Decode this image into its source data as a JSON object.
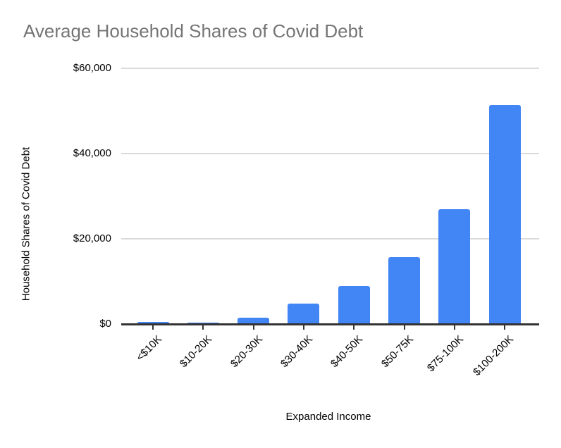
{
  "page": {
    "background": "#ffffff"
  },
  "chart_data": {
    "type": "bar",
    "title": "Average Household Shares of Covid Debt",
    "xlabel": "Expanded Income",
    "ylabel": "Household Shares of Covid Debt",
    "categories": [
      "<$10K",
      "$10-20K",
      "$20-30K",
      "$30-40K",
      "$40-50K",
      "$50-75K",
      "$75-100K",
      "$100-200K"
    ],
    "values": [
      300,
      100,
      1400,
      4600,
      8700,
      15600,
      26700,
      51200
    ],
    "ylim": [
      0,
      60000
    ],
    "yticks": [
      {
        "value": 0,
        "label": "$0"
      },
      {
        "value": 20000,
        "label": "$20,000"
      },
      {
        "value": 40000,
        "label": "$40,000"
      },
      {
        "value": 60000,
        "label": "$60,000"
      }
    ],
    "grid": true,
    "legend_position": "none",
    "x_tick_rotation": -45,
    "colors": {
      "bar": "#4285f4",
      "title": "#757575",
      "axis_text": "#000000",
      "gridline": "#dadada",
      "axis_line": "#333333"
    }
  }
}
